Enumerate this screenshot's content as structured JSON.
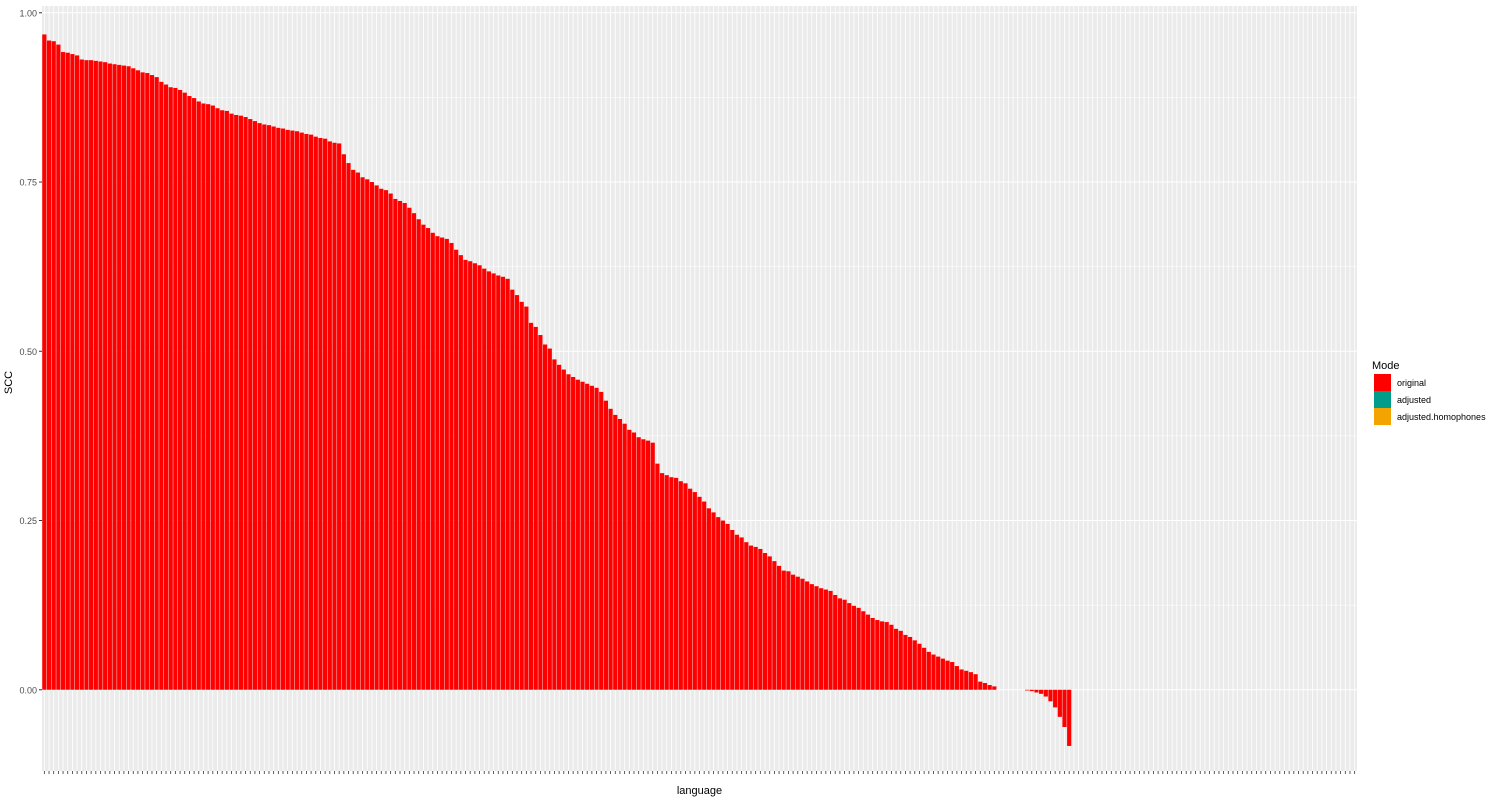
{
  "colors": {
    "panel_bg": "#EBEBEB",
    "grid": "#FFFFFF",
    "text": "#4D4D4D",
    "original": "#FF0000",
    "adjusted": "#009E8A",
    "adjusted_homophones": "#F4A400"
  },
  "chart_data": {
    "type": "bar",
    "xlabel": "language",
    "ylabel": "SCC",
    "ylim": [
      -0.12,
      1.01
    ],
    "yticks": [
      0.0,
      0.25,
      0.5,
      0.75,
      1.0
    ],
    "ytick_labels": [
      "0.00",
      "0.25",
      "0.50",
      "0.75",
      "1.00"
    ],
    "grid": true,
    "legend": {
      "title": "Mode",
      "position": "right",
      "entries": [
        {
          "key": "original",
          "label": "original",
          "color": "#FF0000"
        },
        {
          "key": "adjusted",
          "label": "adjusted",
          "color": "#009E8A"
        },
        {
          "key": "adjusted_homophones",
          "label": "adjusted.homophones",
          "color": "#F4A400"
        }
      ]
    },
    "category_count": 281,
    "series": [
      {
        "name": "original",
        "color": "#FF0000",
        "values": [
          0.968,
          0.959,
          0.958,
          0.953,
          0.942,
          0.941,
          0.939,
          0.937,
          0.931,
          0.93,
          0.93,
          0.929,
          0.928,
          0.927,
          0.925,
          0.924,
          0.923,
          0.922,
          0.921,
          0.918,
          0.915,
          0.912,
          0.911,
          0.908,
          0.905,
          0.898,
          0.894,
          0.89,
          0.889,
          0.886,
          0.882,
          0.877,
          0.874,
          0.869,
          0.866,
          0.865,
          0.863,
          0.859,
          0.856,
          0.855,
          0.851,
          0.849,
          0.848,
          0.846,
          0.843,
          0.84,
          0.837,
          0.835,
          0.834,
          0.832,
          0.83,
          0.829,
          0.827,
          0.826,
          0.825,
          0.823,
          0.821,
          0.82,
          0.817,
          0.815,
          0.814,
          0.81,
          0.808,
          0.807,
          0.791,
          0.778,
          0.768,
          0.764,
          0.757,
          0.754,
          0.75,
          0.745,
          0.74,
          0.738,
          0.733,
          0.725,
          0.722,
          0.719,
          0.712,
          0.704,
          0.695,
          0.687,
          0.682,
          0.675,
          0.67,
          0.668,
          0.666,
          0.66,
          0.65,
          0.642,
          0.635,
          0.633,
          0.63,
          0.627,
          0.622,
          0.618,
          0.615,
          0.612,
          0.61,
          0.607,
          0.591,
          0.583,
          0.573,
          0.566,
          0.542,
          0.536,
          0.524,
          0.51,
          0.504,
          0.488,
          0.48,
          0.473,
          0.466,
          0.462,
          0.458,
          0.455,
          0.452,
          0.449,
          0.446,
          0.44,
          0.427,
          0.415,
          0.406,
          0.4,
          0.393,
          0.384,
          0.38,
          0.373,
          0.37,
          0.368,
          0.365,
          0.334,
          0.32,
          0.317,
          0.314,
          0.313,
          0.308,
          0.305,
          0.297,
          0.292,
          0.285,
          0.278,
          0.268,
          0.262,
          0.255,
          0.25,
          0.245,
          0.236,
          0.229,
          0.225,
          0.218,
          0.213,
          0.211,
          0.208,
          0.202,
          0.197,
          0.19,
          0.183,
          0.176,
          0.175,
          0.17,
          0.167,
          0.164,
          0.16,
          0.156,
          0.153,
          0.15,
          0.148,
          0.146,
          0.14,
          0.135,
          0.133,
          0.128,
          0.124,
          0.121,
          0.116,
          0.111,
          0.106,
          0.103,
          0.101,
          0.1,
          0.096,
          0.09,
          0.087,
          0.081,
          0.078,
          0.073,
          0.068,
          0.062,
          0.056,
          0.052,
          0.049,
          0.046,
          0.043,
          0.041,
          0.035,
          0.03,
          0.028,
          0.026,
          0.023,
          0.012,
          0.01,
          0.007,
          0.005,
          0.0,
          0.0,
          0.0,
          0.0,
          0.0,
          0.0,
          -0.001,
          -0.002,
          -0.004,
          -0.006,
          -0.01,
          -0.017,
          -0.026,
          -0.04,
          -0.055,
          -0.083
        ]
      }
    ]
  }
}
